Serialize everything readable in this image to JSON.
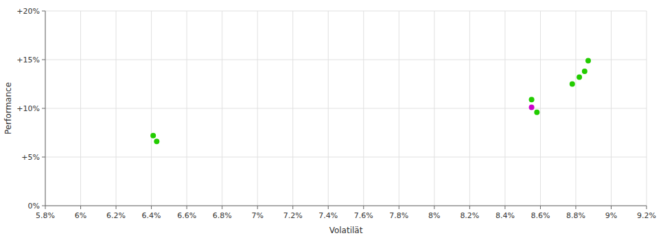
{
  "chart_data": {
    "type": "scatter",
    "xlabel": "Volatilät",
    "ylabel": "Performance",
    "xlim": [
      0.058,
      0.092
    ],
    "ylim": [
      0.0,
      0.2
    ],
    "xticks": [
      {
        "value": 0.058,
        "label": "5.8%"
      },
      {
        "value": 0.06,
        "label": "6%"
      },
      {
        "value": 0.062,
        "label": "6.2%"
      },
      {
        "value": 0.064,
        "label": "6.4%"
      },
      {
        "value": 0.066,
        "label": "6.6%"
      },
      {
        "value": 0.068,
        "label": "6.8%"
      },
      {
        "value": 0.07,
        "label": "7%"
      },
      {
        "value": 0.072,
        "label": "7.2%"
      },
      {
        "value": 0.074,
        "label": "7.4%"
      },
      {
        "value": 0.076,
        "label": "7.6%"
      },
      {
        "value": 0.078,
        "label": "7.8%"
      },
      {
        "value": 0.08,
        "label": "8%"
      },
      {
        "value": 0.082,
        "label": "8.2%"
      },
      {
        "value": 0.084,
        "label": "8.4%"
      },
      {
        "value": 0.086,
        "label": "8.6%"
      },
      {
        "value": 0.088,
        "label": "8.8%"
      },
      {
        "value": 0.09,
        "label": "9%"
      },
      {
        "value": 0.092,
        "label": "9.2%"
      }
    ],
    "yticks": [
      {
        "value": 0.0,
        "label": "0%"
      },
      {
        "value": 0.05,
        "label": "+5%"
      },
      {
        "value": 0.1,
        "label": "+10%"
      },
      {
        "value": 0.15,
        "label": "+15%"
      },
      {
        "value": 0.2,
        "label": "+20%"
      }
    ],
    "grid": true,
    "series": [
      {
        "color": "#22cc00",
        "x": [
          0.0641,
          0.0643,
          0.0855,
          0.0858,
          0.0878,
          0.0882,
          0.0885,
          0.0887
        ],
        "values": [
          0.072,
          0.066,
          0.109,
          0.096,
          0.125,
          0.132,
          0.138,
          0.149
        ]
      },
      {
        "color": "#cc00cc",
        "x": [
          0.0855
        ],
        "values": [
          0.101
        ]
      }
    ]
  }
}
